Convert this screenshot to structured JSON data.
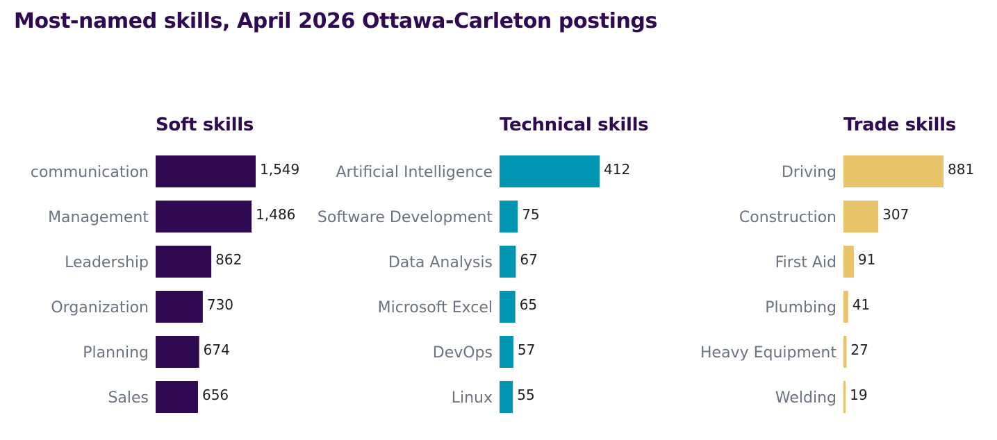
{
  "title": "Most-named skills, April 2026 Ottawa-Carleton postings",
  "chart_data": [
    {
      "type": "bar",
      "orientation": "horizontal",
      "title": "Soft skills",
      "color": "#2f0a52",
      "categories": [
        "communication",
        "Management",
        "Leadership",
        "Organization",
        "Planning",
        "Sales"
      ],
      "values": [
        1549,
        1486,
        862,
        730,
        674,
        656
      ],
      "value_labels": [
        "1,549",
        "1,486",
        "862",
        "730",
        "674",
        "656"
      ],
      "xlim": [
        0,
        1549
      ],
      "grid": false,
      "legend": "none"
    },
    {
      "type": "bar",
      "orientation": "horizontal",
      "title": "Technical skills",
      "color": "#0096b2",
      "categories": [
        "Artificial Intelligence",
        "Software Development",
        "Data Analysis",
        "Microsoft Excel",
        "DevOps",
        "Linux"
      ],
      "values": [
        412,
        75,
        67,
        65,
        57,
        55
      ],
      "value_labels": [
        "412",
        "75",
        "67",
        "65",
        "57",
        "55"
      ],
      "xlim": [
        0,
        412
      ],
      "grid": false,
      "legend": "none"
    },
    {
      "type": "bar",
      "orientation": "horizontal",
      "title": "Trade skills",
      "color": "#e8c36a",
      "categories": [
        "Driving",
        "Construction",
        "First Aid",
        "Plumbing",
        "Heavy Equipment",
        "Welding"
      ],
      "values": [
        881,
        307,
        91,
        41,
        27,
        19
      ],
      "value_labels": [
        "881",
        "307",
        "91",
        "41",
        "27",
        "19"
      ],
      "xlim": [
        0,
        881
      ],
      "grid": false,
      "legend": "none"
    }
  ]
}
